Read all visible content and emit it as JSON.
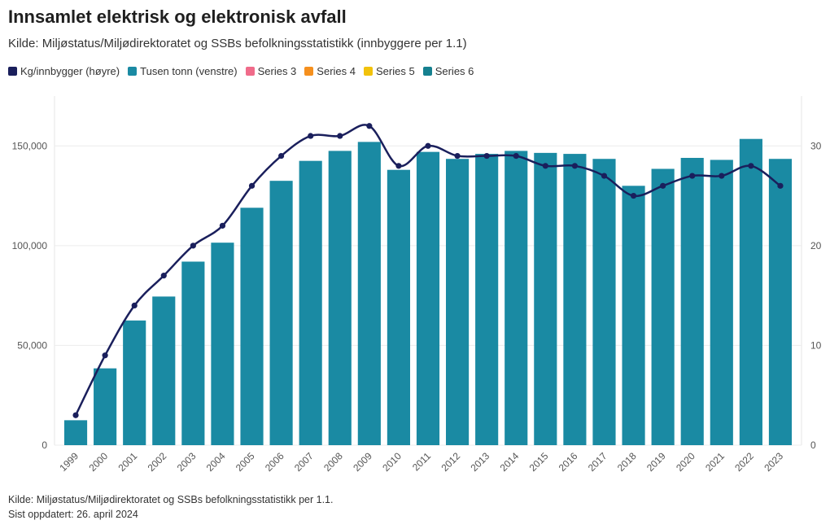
{
  "header": {
    "title": "Innsamlet elektrisk og elektronisk avfall",
    "subtitle": "Kilde: Miljøstatus/Miljødirektoratet og SSBs befolkningsstatistikk (innbyggere per 1.1)"
  },
  "legend": [
    {
      "label": "Kg/innbygger (høyre)",
      "color": "#1a1f5c"
    },
    {
      "label": "Tusen tonn (venstre)",
      "color": "#1a8aa3"
    },
    {
      "label": "Series 3",
      "color": "#f06b8a"
    },
    {
      "label": "Series 4",
      "color": "#f5901e"
    },
    {
      "label": "Series 5",
      "color": "#f2c20c"
    },
    {
      "label": "Series 6",
      "color": "#15808f"
    }
  ],
  "chart_data": {
    "type": "bar+line",
    "categories": [
      "1999",
      "2000",
      "2001",
      "2002",
      "2003",
      "2004",
      "2005",
      "2006",
      "2007",
      "2008",
      "2009",
      "2010",
      "2011",
      "2012",
      "2013",
      "2014",
      "2015",
      "2016",
      "2017",
      "2018",
      "2019",
      "2020",
      "2021",
      "2022",
      "2023"
    ],
    "series": [
      {
        "name": "Tusen tonn (venstre)",
        "type": "bar",
        "axis": "left",
        "color": "#1a8aa3",
        "values": [
          12500,
          38500,
          62500,
          74500,
          92000,
          101500,
          119000,
          132500,
          142500,
          147500,
          152000,
          138000,
          147000,
          143500,
          146000,
          147500,
          146500,
          146000,
          143500,
          130000,
          138500,
          144000,
          143000,
          153500,
          143500
        ]
      },
      {
        "name": "Kg/innbygger (høyre)",
        "type": "line",
        "axis": "right",
        "color": "#1a1f5c",
        "values": [
          3,
          9,
          14,
          17,
          20,
          22,
          26,
          29,
          31,
          31,
          32,
          28,
          30,
          29,
          29,
          29,
          28,
          28,
          27,
          25,
          26,
          27,
          27,
          28,
          26
        ]
      }
    ],
    "left_axis": {
      "ylim": [
        0,
        175000
      ],
      "ticks": [
        0,
        50000,
        100000,
        150000
      ],
      "tick_labels": [
        "0",
        "50,000",
        "100,000",
        "150,000"
      ]
    },
    "right_axis": {
      "ylim": [
        0,
        35
      ],
      "ticks": [
        0,
        10,
        20,
        30
      ],
      "tick_labels": [
        "0",
        "10",
        "20",
        "30"
      ]
    },
    "grid": true
  },
  "footer": {
    "source": "Kilde: Miljøstatus/Miljødirektoratet og SSBs befolkningsstatistikk per 1.1.",
    "updated": "Sist oppdatert: 26. april 2024"
  }
}
